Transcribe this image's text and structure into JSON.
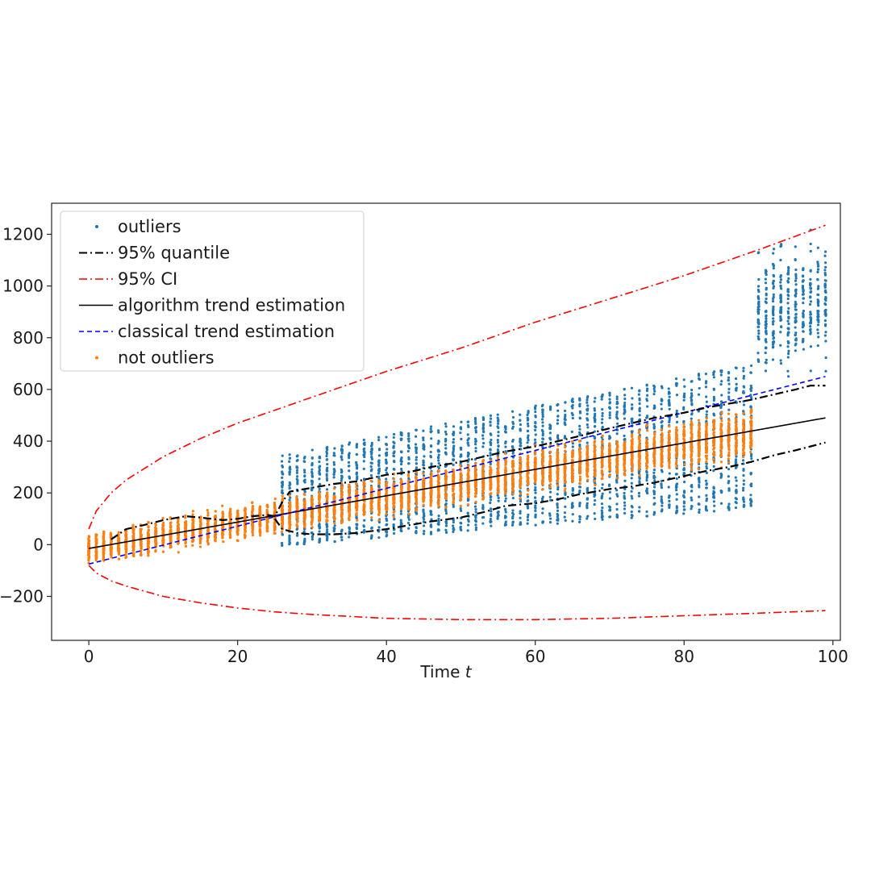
{
  "chart_data": {
    "type": "scatter",
    "xlabel_text": "Time ",
    "xlabel_var": "t",
    "ylabel": "",
    "title": "",
    "xlim": [
      -5,
      101
    ],
    "ylim": [
      -370,
      1320
    ],
    "xticks": [
      0,
      20,
      40,
      60,
      80,
      100
    ],
    "xtick_labels": [
      "0",
      "20",
      "40",
      "60",
      "80",
      "100"
    ],
    "yticks": [
      -200,
      0,
      200,
      400,
      600,
      800,
      1000,
      1200
    ],
    "ytick_labels": [
      "−200",
      "0",
      "200",
      "400",
      "600",
      "800",
      "1000",
      "1200"
    ],
    "grid": false,
    "legend_position": "top-left",
    "colors": {
      "outliers": "#1f77b4",
      "not_outliers": "#ff7f0e",
      "quantile": "#000000",
      "ci": "#ff0000",
      "algorithm_trend": "#000000",
      "classical_trend": "#0000ff"
    },
    "legend": [
      {
        "key": "outliers",
        "label": "outliers",
        "style": "dot",
        "color": "#1f77b4"
      },
      {
        "key": "quantile",
        "label": "95% quantile",
        "style": "dashdot",
        "color": "#000000"
      },
      {
        "key": "ci",
        "label": "95% CI",
        "style": "dashdot",
        "color": "#ff0000"
      },
      {
        "key": "algorithm_trend",
        "label": "algorithm trend estimation",
        "style": "solid",
        "color": "#000000"
      },
      {
        "key": "classical_trend",
        "label": "classical trend estimation",
        "style": "dashed",
        "color": "#0000ff"
      },
      {
        "key": "not_outliers",
        "label": "not outliers",
        "style": "dot",
        "color": "#ff7f0e"
      }
    ],
    "series": [
      {
        "key": "algorithm_trend",
        "type": "line",
        "x": [
          0,
          99
        ],
        "y": [
          -15,
          490
        ]
      },
      {
        "key": "classical_trend",
        "type": "line",
        "x": [
          0,
          99
        ],
        "y": [
          -75,
          650
        ]
      },
      {
        "key": "ci_upper",
        "type": "line",
        "x": [
          0,
          1,
          3,
          5,
          10,
          15,
          20,
          25,
          30,
          40,
          50,
          60,
          70,
          80,
          90,
          99
        ],
        "y": [
          60,
          130,
          200,
          250,
          340,
          410,
          470,
          520,
          570,
          670,
          760,
          860,
          950,
          1040,
          1140,
          1235
        ]
      },
      {
        "key": "ci_lower",
        "type": "line",
        "x": [
          0,
          1,
          3,
          5,
          10,
          15,
          20,
          25,
          30,
          40,
          50,
          60,
          70,
          80,
          90,
          99
        ],
        "y": [
          -80,
          -110,
          -140,
          -160,
          -200,
          -225,
          -245,
          -260,
          -270,
          -285,
          -290,
          -290,
          -285,
          -275,
          -265,
          -255
        ]
      },
      {
        "key": "quantile_upper",
        "type": "line",
        "x": [
          3,
          5,
          8,
          10,
          13,
          15,
          18,
          20,
          22,
          24,
          25,
          26,
          27,
          30,
          33,
          36,
          40,
          43,
          46,
          50,
          53,
          56,
          60,
          63,
          66,
          70,
          73,
          76,
          80,
          83,
          86,
          89,
          92,
          95,
          97,
          99
        ],
        "y": [
          20,
          60,
          80,
          95,
          110,
          105,
          95,
          100,
          110,
          115,
          110,
          165,
          205,
          220,
          235,
          245,
          270,
          280,
          300,
          320,
          340,
          360,
          380,
          400,
          420,
          450,
          470,
          490,
          510,
          530,
          545,
          560,
          580,
          600,
          615,
          615
        ]
      },
      {
        "key": "quantile_lower",
        "type": "line",
        "x": [
          25,
          26,
          28,
          30,
          33,
          36,
          40,
          43,
          46,
          50,
          53,
          56,
          60,
          63,
          66,
          70,
          73,
          76,
          80,
          83,
          86,
          89,
          92,
          95,
          97,
          99
        ],
        "y": [
          100,
          60,
          45,
          40,
          40,
          45,
          60,
          75,
          90,
          105,
          125,
          150,
          160,
          175,
          195,
          215,
          225,
          240,
          265,
          285,
          300,
          320,
          345,
          365,
          380,
          395
        ]
      }
    ],
    "scatter_groups": [
      {
        "key": "not_outliers",
        "color": "#ff7f0e",
        "x_range": [
          0,
          89
        ],
        "center_start": -15,
        "center_end": 430,
        "half_width_start": 75,
        "half_width_end": 120
      },
      {
        "key": "outliers",
        "color": "#1f77b4",
        "x_range": [
          26,
          89
        ],
        "center_start": 170,
        "center_end": 420,
        "half_width_start": 175,
        "half_width_end": 280
      },
      {
        "key": "outliers",
        "color": "#1f77b4",
        "x_range": [
          90,
          99
        ],
        "center_start": 900,
        "center_end": 950,
        "half_width_start": 330,
        "half_width_end": 310
      }
    ]
  }
}
